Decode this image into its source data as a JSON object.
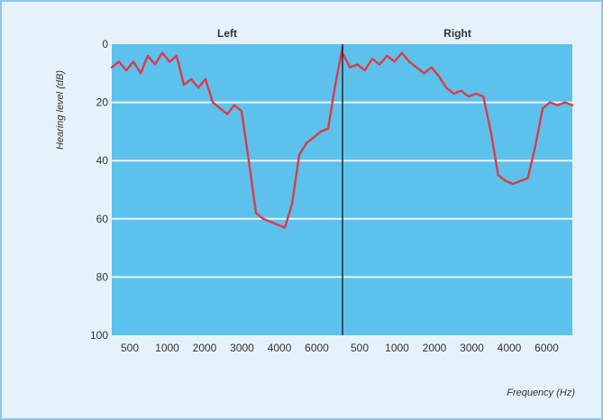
{
  "chart_data": {
    "type": "line",
    "panels": [
      {
        "title": "Left",
        "categories": [
          "500",
          "1000",
          "2000",
          "3000",
          "4000",
          "6000"
        ],
        "x": [
          0,
          0.2,
          0.4,
          0.6,
          0.8,
          1.0,
          1.2,
          1.4,
          1.6,
          1.8,
          2.0,
          2.2,
          2.4,
          2.6,
          2.8,
          3.0,
          3.2,
          3.4,
          3.6,
          3.8,
          4.0,
          4.2,
          4.4,
          4.6,
          4.8,
          5.0,
          5.2,
          5.4,
          5.6,
          5.8,
          6.0,
          6.2,
          6.4
        ],
        "values": [
          8,
          6,
          9,
          6,
          10,
          4,
          7,
          3,
          6,
          4,
          14,
          12,
          15,
          12,
          20,
          22,
          24,
          21,
          23,
          40,
          58,
          60,
          61,
          62,
          63,
          55,
          38,
          34,
          32,
          30,
          29,
          14,
          1
        ]
      },
      {
        "title": "Right",
        "categories": [
          "500",
          "1000",
          "2000",
          "3000",
          "4000",
          "6000"
        ],
        "x": [
          0,
          0.2,
          0.4,
          0.6,
          0.8,
          1.0,
          1.2,
          1.4,
          1.6,
          1.8,
          2.0,
          2.2,
          2.4,
          2.6,
          2.8,
          3.0,
          3.2,
          3.4,
          3.6,
          3.8,
          4.0,
          4.2,
          4.4,
          4.6,
          4.8,
          5.0,
          5.2,
          5.4,
          5.6,
          5.8,
          6.0,
          6.2
        ],
        "values": [
          3,
          8,
          7,
          9,
          5,
          7,
          4,
          6,
          3,
          6,
          8,
          10,
          8,
          11,
          15,
          17,
          16,
          18,
          17,
          18,
          30,
          45,
          47,
          48,
          47,
          46,
          35,
          22,
          20,
          21,
          20,
          21
        ]
      }
    ],
    "ylabel": "Hearing level (dB)",
    "xlabel": "Frequency (Hz)",
    "ylim": [
      0,
      100
    ],
    "y_inverted": true,
    "yticks": [
      0,
      20,
      40,
      60,
      80,
      100
    ],
    "grid": true,
    "colors": {
      "background": "#e6f2fb",
      "plot": "#5cc2ec",
      "gridline": "#e8f5fc",
      "line": "#dd3a48",
      "divider": "#1f2a33",
      "border": "#8fc7ea"
    }
  }
}
